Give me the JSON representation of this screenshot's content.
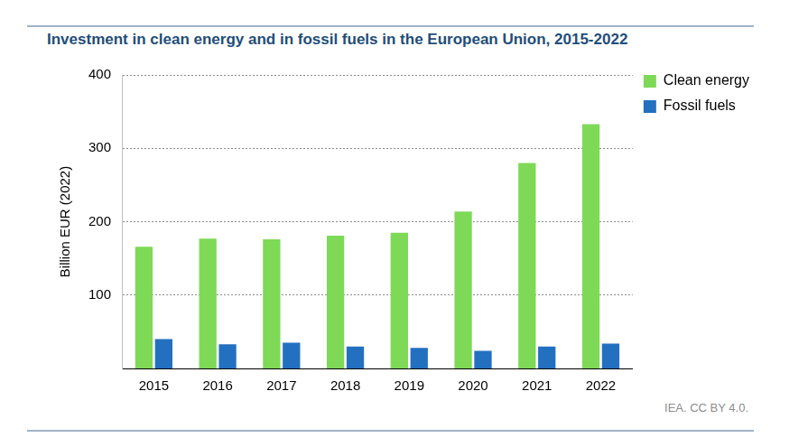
{
  "chart_data": {
    "type": "bar",
    "title": "Investment in clean energy and in fossil fuels in the European Union, 2015-2022",
    "y_label": "Billion EUR (2022)",
    "annotations": [
      "IEA. CC BY 4.0."
    ],
    "categories": [
      "2015",
      "2016",
      "2017",
      "2018",
      "2019",
      "2020",
      "2021",
      "2022"
    ],
    "series": [
      {
        "name": "Clean energy",
        "color": "#7ed957",
        "values": [
          166,
          177,
          176,
          181,
          185,
          214,
          280,
          333
        ]
      },
      {
        "name": "Fossil fuels",
        "color": "#2370c0",
        "values": [
          40,
          33,
          35,
          30,
          28,
          24,
          30,
          34
        ]
      }
    ],
    "ylim": [
      0,
      400
    ],
    "yticks": [
      100,
      200,
      300,
      400
    ],
    "grid": true,
    "legend": "top-right"
  }
}
